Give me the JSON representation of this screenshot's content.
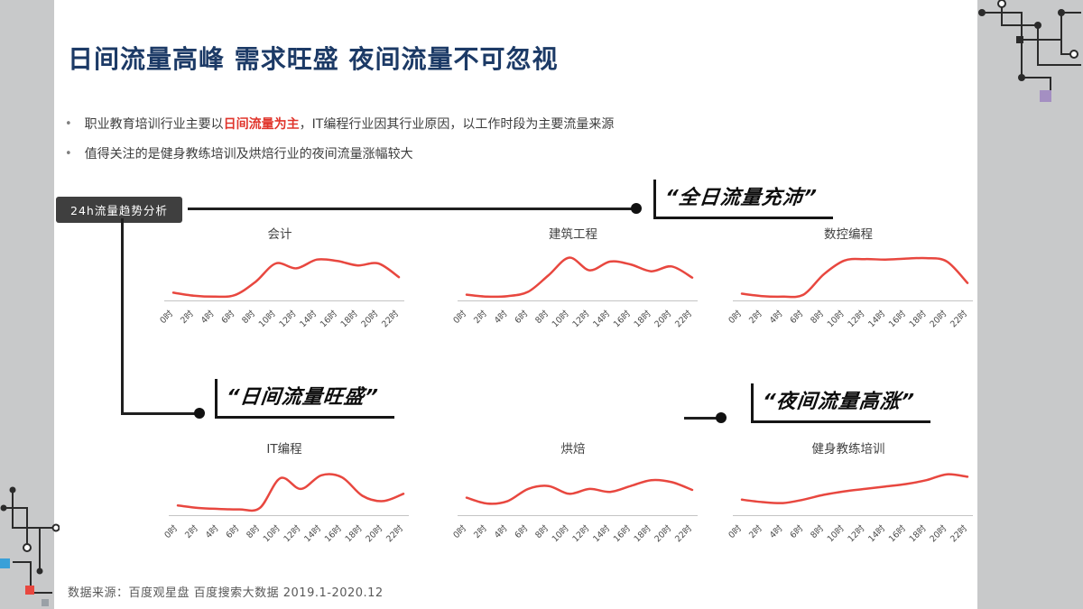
{
  "slide": {
    "title": "日间流量高峰 需求旺盛 夜间流量不可忽视",
    "bullet_icon": "•",
    "bullets": [
      {
        "pre": "职业教育培训行业主要以",
        "highlight": "日间流量为主",
        "post": "，IT编程行业因其行业原因，以工作时段为主要流量来源"
      },
      {
        "pre": "值得关注的是健身教练培训及烘焙行业的夜间流量涨幅较大",
        "highlight": "",
        "post": ""
      }
    ],
    "tag": "24h流量趋势分析",
    "callouts": {
      "full_day": "“全日流量充沛”",
      "daytime": "“日间流量旺盛”",
      "night": "“夜间流量高涨”"
    },
    "source": "数据来源：百度观星盘 百度搜索大数据 2019.1-2020.12"
  },
  "colors": {
    "title_navy": "#1c3a66",
    "accent_red": "#e0342b",
    "line_red": "#e8473f",
    "tag_bg": "#3f3f3f",
    "side_gray": "#c8c9ca",
    "deco_purple": "#a48fc2",
    "deco_blue": "#3aa0d8"
  },
  "chart_data": [
    {
      "type": "line",
      "title": "会计",
      "categories": [
        "0时",
        "2时",
        "4时",
        "6时",
        "8时",
        "10时",
        "12时",
        "14时",
        "16时",
        "18时",
        "20时",
        "22时"
      ],
      "values": [
        14,
        8,
        6,
        9,
        36,
        74,
        64,
        82,
        79,
        70,
        74,
        46
      ],
      "xlabel": "",
      "ylabel": "",
      "ylim": [
        0,
        100
      ],
      "grid": false,
      "line_color": "#e8473f"
    },
    {
      "type": "line",
      "title": "建筑工程",
      "categories": [
        "0时",
        "2时",
        "4时",
        "6时",
        "8时",
        "10时",
        "12时",
        "14时",
        "16时",
        "18时",
        "20时",
        "22时"
      ],
      "values": [
        10,
        6,
        7,
        16,
        50,
        86,
        60,
        78,
        72,
        58,
        68,
        45
      ],
      "xlabel": "",
      "ylabel": "",
      "ylim": [
        0,
        100
      ],
      "grid": false,
      "line_color": "#e8473f"
    },
    {
      "type": "line",
      "title": "数控编程",
      "categories": [
        "0时",
        "2时",
        "4时",
        "6时",
        "8时",
        "10时",
        "12时",
        "14时",
        "16时",
        "18时",
        "20时",
        "22时"
      ],
      "values": [
        12,
        7,
        6,
        10,
        52,
        80,
        83,
        82,
        84,
        85,
        78,
        34
      ],
      "xlabel": "",
      "ylabel": "",
      "ylim": [
        0,
        100
      ],
      "grid": false,
      "line_color": "#e8473f"
    },
    {
      "type": "line",
      "title": "IT编程",
      "categories": [
        "0时",
        "2时",
        "4时",
        "6时",
        "8时",
        "10时",
        "12时",
        "14时",
        "16时",
        "18时",
        "20时",
        "22时"
      ],
      "values": [
        18,
        13,
        11,
        10,
        13,
        74,
        52,
        80,
        76,
        38,
        27,
        42
      ],
      "xlabel": "",
      "ylabel": "",
      "ylim": [
        0,
        100
      ],
      "grid": false,
      "line_color": "#e8473f"
    },
    {
      "type": "line",
      "title": "烘焙",
      "categories": [
        "0时",
        "2时",
        "4时",
        "6时",
        "8时",
        "10时",
        "12时",
        "14时",
        "16时",
        "18时",
        "20时",
        "22时"
      ],
      "values": [
        34,
        22,
        27,
        52,
        58,
        42,
        52,
        46,
        58,
        70,
        66,
        50
      ],
      "xlabel": "",
      "ylabel": "",
      "ylim": [
        0,
        100
      ],
      "grid": false,
      "line_color": "#e8473f"
    },
    {
      "type": "line",
      "title": "健身教练培训",
      "categories": [
        "0时",
        "2时",
        "4时",
        "6时",
        "8时",
        "10时",
        "12时",
        "14时",
        "16时",
        "18时",
        "20时",
        "22时"
      ],
      "values": [
        30,
        25,
        23,
        30,
        40,
        47,
        52,
        57,
        62,
        70,
        82,
        77
      ],
      "xlabel": "",
      "ylabel": "",
      "ylim": [
        0,
        100
      ],
      "grid": false,
      "line_color": "#e8473f"
    }
  ]
}
